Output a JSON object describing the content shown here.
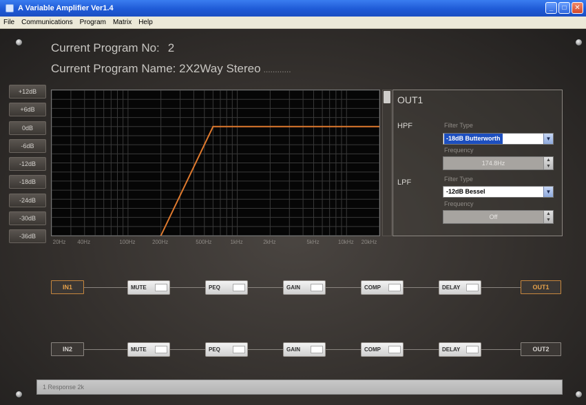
{
  "window": {
    "title": "A Variable Amplifier Ver1.4",
    "buttons": {
      "minimize": "_",
      "maximize": "□",
      "close": "✕"
    }
  },
  "menu": [
    "File",
    "Communications",
    "Program",
    "Matrix",
    "Help"
  ],
  "program": {
    "number_label": "Current Program No:",
    "number": "2",
    "name_label": "Current Program Name:",
    "name": "2X2Way Stereo",
    "name_trailing": "............"
  },
  "gain_scale": [
    "+12dB",
    "+6dB",
    "0dB",
    "-6dB",
    "-12dB",
    "-18dB",
    "-24dB",
    "-30dB",
    "-36dB"
  ],
  "freq_axis": [
    "20Hz",
    "40Hz",
    "100Hz",
    "200Hz",
    "500Hz",
    "1kHz",
    "2kHz",
    "5kHz",
    "10kHz",
    "20kHz"
  ],
  "chart_data": {
    "type": "line",
    "series": [
      {
        "x_hz": [
          20,
          200,
          600,
          20000
        ],
        "y_db": [
          -60,
          -36,
          0,
          0
        ]
      }
    ],
    "xscale": "log",
    "xlim_hz": [
      20,
      20000
    ],
    "ylim_db": [
      -36,
      12
    ],
    "grid": true,
    "line_color": "#e07a2e"
  },
  "out_panel": {
    "title": "OUT1",
    "hpf_label": "HPF",
    "hpf_type_label": "Filter Type",
    "hpf_type": "-18dB Butterworth",
    "hpf_freq_label": "Frequency",
    "hpf_freq": "174.8Hz",
    "lpf_label": "LPF",
    "lpf_type_label": "Filter Type",
    "lpf_type": "-12dB Bessel",
    "lpf_freq_label": "Frequency",
    "lpf_freq": "Off"
  },
  "routing": {
    "rows": [
      {
        "input": "IN1",
        "blocks": [
          "MUTE",
          "PEQ",
          "GAIN",
          "COMP",
          "DELAY"
        ],
        "output": "OUT1"
      },
      {
        "input": "IN2",
        "blocks": [
          "MUTE",
          "PEQ",
          "GAIN",
          "COMP",
          "DELAY"
        ],
        "output": "OUT2"
      }
    ]
  },
  "status": "1 Response 2k"
}
